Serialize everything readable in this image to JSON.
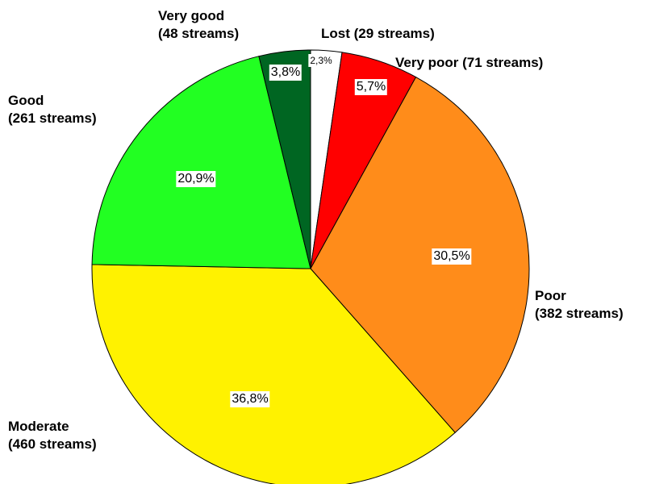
{
  "chart_data": {
    "type": "pie",
    "categories": [
      "Lost (29 streams)",
      "Very poor (71 streams)",
      "Poor\n(382 streams)",
      "Moderate\n(460 streams)",
      "Good\n(261 streams)",
      "Very good\n(48 streams)"
    ],
    "values": [
      2.3,
      5.7,
      30.5,
      36.8,
      20.9,
      3.8
    ],
    "value_labels": [
      "2,3%",
      "5,7%",
      "30,5%",
      "36,8%",
      "20,9%",
      "3,8%"
    ],
    "colors": [
      "#ffffff",
      "#ff0000",
      "#ff8c1a",
      "#fff200",
      "#22ff22",
      "#006622"
    ]
  }
}
